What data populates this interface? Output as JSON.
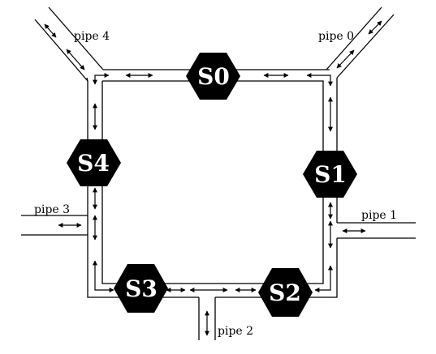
{
  "colors": {
    "background": "#ffffff",
    "stroke": "#000000",
    "node_fill": "#000000",
    "node_text": "#ffffff",
    "label_text": "#000000"
  },
  "nodes": [
    {
      "id": "S0",
      "label": "S0"
    },
    {
      "id": "S1",
      "label": "S1"
    },
    {
      "id": "S2",
      "label": "S2"
    },
    {
      "id": "S3",
      "label": "S3"
    },
    {
      "id": "S4",
      "label": "S4"
    }
  ],
  "pipes": [
    {
      "id": "pipe0",
      "label": "pipe 0"
    },
    {
      "id": "pipe1",
      "label": "pipe 1"
    },
    {
      "id": "pipe2",
      "label": "pipe 2"
    },
    {
      "id": "pipe3",
      "label": "pipe 3"
    },
    {
      "id": "pipe4",
      "label": "pipe 4"
    }
  ],
  "icons": {
    "arrow": "double-headed-arrow-icon",
    "node_shape": "hexagon-icon"
  }
}
